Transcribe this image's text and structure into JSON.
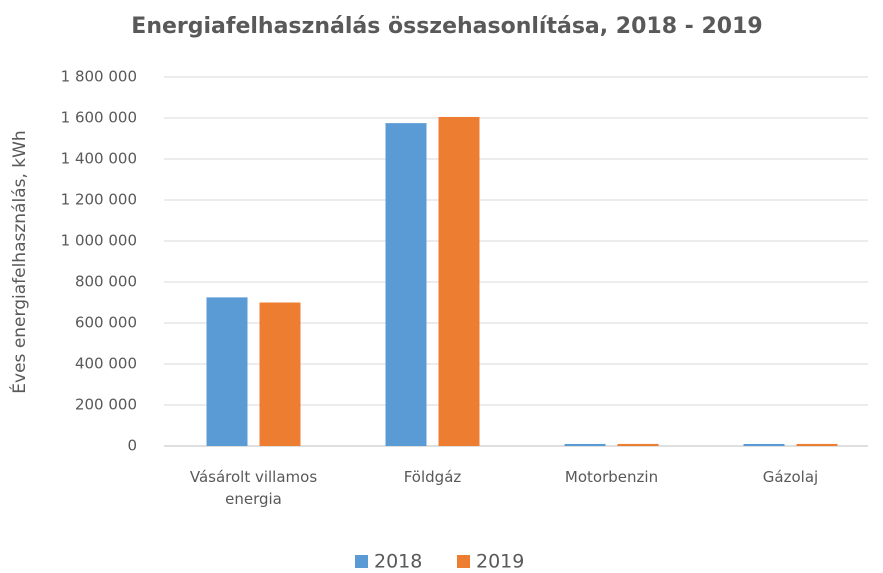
{
  "chart_data": {
    "type": "bar",
    "title": "Energiafelhasználás összehasonlítása, 2018 - 2019",
    "y_label": "Éves energiafelhasználás, kWh",
    "categories": [
      "Vásárolt villamos energia",
      "Földgáz",
      "Motorbenzin",
      "Gázolaj"
    ],
    "series": [
      {
        "name": "2018",
        "color": "#5b9bd5",
        "values": [
          725000,
          1575000,
          10000,
          10000
        ]
      },
      {
        "name": "2019",
        "color": "#ed7d31",
        "values": [
          700000,
          1605000,
          10000,
          10000
        ]
      }
    ],
    "ylim": [
      0,
      1800000
    ],
    "yticks": [
      0,
      {
        "value": 200000,
        "label": "200 000"
      },
      {
        "value": 400000,
        "label": "400 000"
      },
      {
        "value": 600000,
        "label": "600 000"
      },
      {
        "value": 800000,
        "label": "800 000"
      },
      {
        "value": 1000000,
        "label": "1 000 000"
      },
      {
        "value": 1200000,
        "label": "1 200 000"
      },
      {
        "value": 1400000,
        "label": "1 400 000"
      },
      {
        "value": 1600000,
        "label": "1 600 000"
      },
      {
        "value": 1800000,
        "label": "1 800 000"
      }
    ],
    "grid": true,
    "legend": "bottom"
  }
}
